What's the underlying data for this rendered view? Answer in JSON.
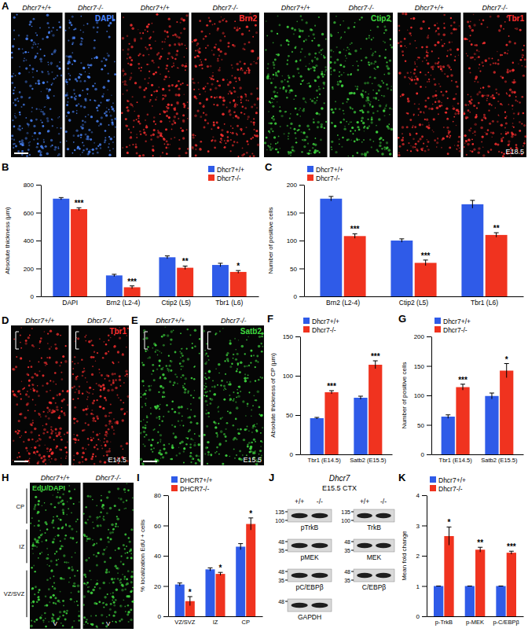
{
  "image_panels": [
    {
      "panel_label": "A",
      "stage": "E18.5",
      "groups": [
        {
          "stain": "DAPI",
          "color": "#4a86ff",
          "genotypes": [
            "Dhcr7+/+",
            "Dhcr7-/-"
          ]
        },
        {
          "stain": "Brn2",
          "color": "#ff3030",
          "genotypes": [
            "Dhcr7+/+",
            "Dhcr7-/-"
          ]
        },
        {
          "stain": "Ctip2",
          "color": "#3fd83f",
          "genotypes": [
            "Dhcr7+/+",
            "Dhcr7-/-"
          ]
        },
        {
          "stain": "Tbr1",
          "color": "#ff3030",
          "genotypes": [
            "Dhcr7+/+",
            "Dhcr7-/-"
          ]
        }
      ]
    },
    {
      "panel_label": "D",
      "stage": "E14.5",
      "groups": [
        {
          "stain": "Tbr1",
          "color": "#ff3030",
          "genotypes": [
            "Dhcr7+/+",
            "Dhcr7-/-"
          ]
        }
      ]
    },
    {
      "panel_label": "E",
      "stage": "E15.5",
      "groups": [
        {
          "stain": "Satb2",
          "color": "#3fd83f",
          "genotypes": [
            "Dhcr7+/+",
            "Dhcr7-/-"
          ]
        }
      ]
    },
    {
      "panel_label": "H",
      "zones": [
        "CP",
        "IZ",
        "VZ/SVZ"
      ],
      "ventricle": "V",
      "groups": [
        {
          "stain": "EdU/DAPI",
          "color": "#3fd83f",
          "genotypes": [
            "Dhcr7+/+",
            "Dhcr7-/-"
          ]
        }
      ]
    }
  ],
  "chart_data": [
    {
      "type": "bar",
      "panel_label": "B",
      "y_label": "Absolute thickness (µm)",
      "categories": [
        "DAPI",
        "Brn2 (L2-4)",
        "Ctip2 (L5)",
        "Tbr1 (L6)"
      ],
      "series": [
        {
          "name": "Dhcr7+/+",
          "color": "#2f5be8",
          "values": [
            700,
            150,
            280,
            225
          ],
          "errors": [
            8,
            8,
            10,
            12
          ]
        },
        {
          "name": "Dhcr7-/-",
          "color": "#f0331f",
          "values": [
            625,
            65,
            205,
            175
          ],
          "errors": [
            10,
            10,
            12,
            10
          ]
        }
      ],
      "annotations": [
        "***",
        "***",
        "**",
        "*"
      ],
      "ylim": [
        0,
        800
      ],
      "yticks": [
        0,
        200,
        400,
        600,
        800
      ],
      "legend": "top right"
    },
    {
      "type": "bar",
      "panel_label": "C",
      "y_label": "Number of positive cells",
      "categories": [
        "Brn2 (L2-4)",
        "Ctip2 (L5)",
        "Tbr1 (L6)"
      ],
      "series": [
        {
          "name": "Dhcr7+/+",
          "color": "#2f5be8",
          "values": [
            175,
            100,
            165
          ],
          "errors": [
            4,
            3,
            7
          ]
        },
        {
          "name": "Dhcr7-/-",
          "color": "#f0331f",
          "values": [
            108,
            60,
            110
          ],
          "errors": [
            4,
            5,
            4
          ]
        }
      ],
      "annotations": [
        "***",
        "***",
        "**"
      ],
      "ylim": [
        0,
        200
      ],
      "yticks": [
        0,
        50,
        100,
        150,
        200
      ],
      "legend": "top left"
    },
    {
      "type": "bar",
      "panel_label": "F",
      "y_label": "Absolute thickness of CP (µm)",
      "categories": [
        "Tbr1 (E14.5)",
        "Satb2 (E15.5)"
      ],
      "series": [
        {
          "name": "Dhcr7+/+",
          "color": "#2f5be8",
          "values": [
            46,
            72
          ],
          "errors": [
            1,
            2
          ]
        },
        {
          "name": "Dhcr7-/-",
          "color": "#f0331f",
          "values": [
            79,
            114
          ],
          "errors": [
            2,
            5
          ]
        }
      ],
      "annotations": [
        "***",
        "***"
      ],
      "ylim": [
        0,
        150
      ],
      "yticks": [
        0,
        50,
        100,
        150
      ],
      "legend": "top left"
    },
    {
      "type": "bar",
      "panel_label": "G",
      "y_label": "Number of positive cells",
      "categories": [
        "Tbr1 (E14.5)",
        "Satb2 (E15.5)"
      ],
      "series": [
        {
          "name": "Dhcr7+/+",
          "color": "#2f5be8",
          "values": [
            64,
            99
          ],
          "errors": [
            3,
            5
          ]
        },
        {
          "name": "Dhcr7-/-",
          "color": "#f0331f",
          "values": [
            114,
            142
          ],
          "errors": [
            5,
            12
          ]
        }
      ],
      "annotations": [
        "***",
        "*"
      ],
      "ylim": [
        0,
        200
      ],
      "yticks": [
        0,
        50,
        100,
        150,
        200
      ],
      "legend": "top left"
    },
    {
      "type": "bar",
      "panel_label": "I",
      "y_label": "% localization EdU + cells",
      "categories": [
        "VZ/SVZ",
        "IZ",
        "CP"
      ],
      "series": [
        {
          "name": "DHCR7+/+",
          "color": "#2f5be8",
          "values": [
            21,
            31,
            46
          ],
          "errors": [
            1,
            1,
            2
          ]
        },
        {
          "name": "DHCR7-/-",
          "color": "#f0331f",
          "values": [
            10,
            28,
            61
          ],
          "errors": [
            3,
            1,
            4
          ]
        }
      ],
      "annotations": [
        "*",
        "*",
        "*"
      ],
      "ylim": [
        0,
        80
      ],
      "yticks": [
        0,
        20,
        40,
        60,
        80
      ],
      "legend": "top left"
    },
    {
      "type": "bar",
      "panel_label": "K",
      "y_label": "Mean fold change",
      "categories": [
        "p-TrkB",
        "p-MEK",
        "p-C/EBPβ"
      ],
      "series": [
        {
          "name": "Dhcr7+/+",
          "color": "#2f5be8",
          "values": [
            1,
            1,
            1
          ],
          "errors": [
            0,
            0,
            0
          ]
        },
        {
          "name": "Dhcr7-/-",
          "color": "#f0331f",
          "values": [
            2.65,
            2.2,
            2.1
          ],
          "errors": [
            0.3,
            0.08,
            0.05
          ]
        }
      ],
      "annotations": [
        "*",
        "**",
        "***"
      ],
      "ylim": [
        0,
        4
      ],
      "yticks": [
        0,
        1,
        2,
        3,
        4
      ],
      "legend": "top left"
    }
  ],
  "blot": {
    "panel_label": "J",
    "title": "Dhcr7",
    "subtitle": "E15.5 CTX",
    "lanes": [
      "+/+",
      "-/-"
    ],
    "columns": [
      [
        {
          "name": "pTrkB",
          "mw": [
            135,
            100
          ]
        },
        {
          "name": "pMEK",
          "mw": [
            48,
            35
          ]
        },
        {
          "name": "pC/EBPβ",
          "mw": [
            48,
            35
          ]
        },
        {
          "name": "GAPDH",
          "mw": [
            48
          ]
        }
      ],
      [
        {
          "name": "TrkB",
          "mw": [
            135,
            100
          ]
        },
        {
          "name": "MEK",
          "mw": [
            48,
            35
          ]
        },
        {
          "name": "C/EBPβ",
          "mw": [
            48,
            35
          ]
        }
      ]
    ]
  }
}
